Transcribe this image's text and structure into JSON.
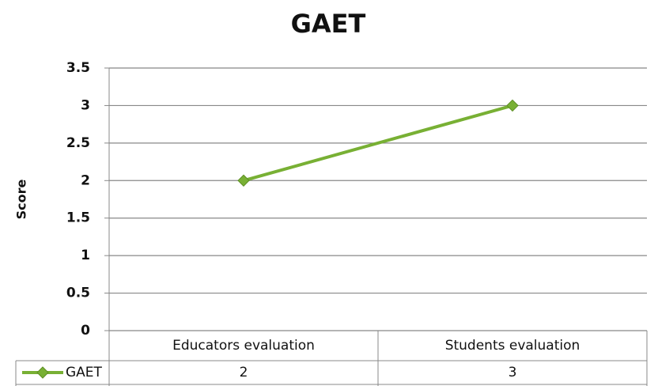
{
  "chart_data": {
    "type": "line",
    "title": "GAET",
    "y_label": "Score",
    "categories": [
      "Educators evaluation",
      "Students evaluation"
    ],
    "series": [
      {
        "name": "GAET",
        "color": "#78b034",
        "values": [
          2,
          3
        ]
      }
    ],
    "ylim": [
      0,
      3.5
    ],
    "yticks": [
      0,
      0.5,
      1,
      1.5,
      2,
      2.5,
      3,
      3.5
    ],
    "grid": true,
    "legend": "data-table"
  }
}
